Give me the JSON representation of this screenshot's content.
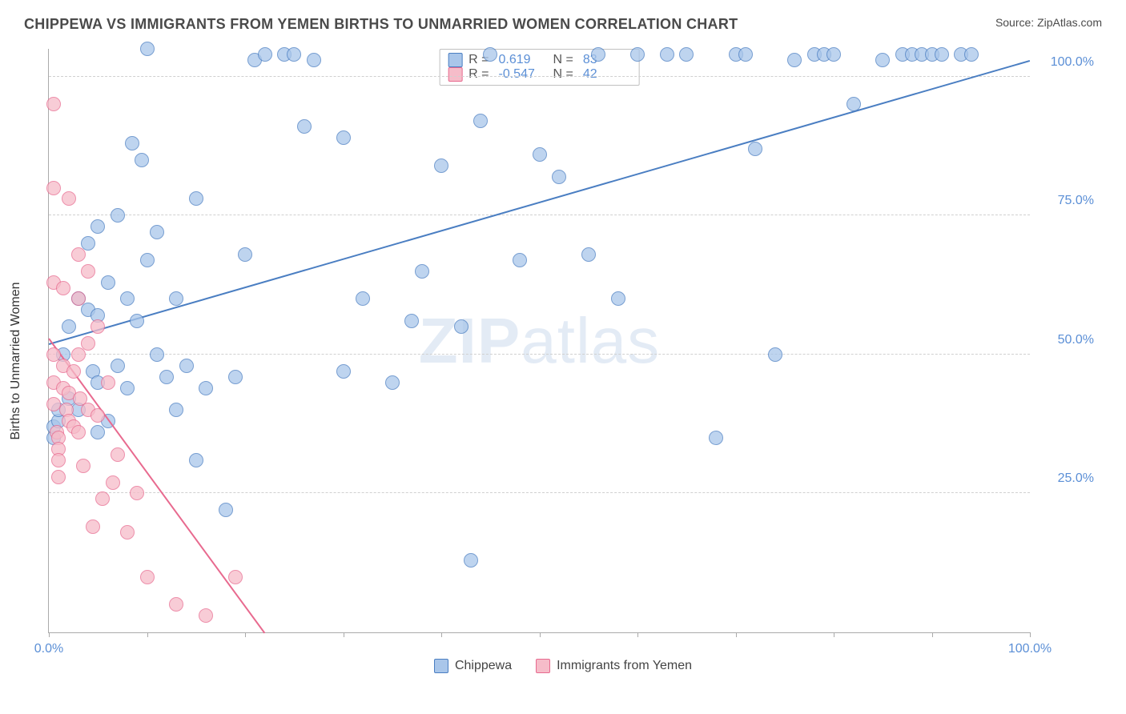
{
  "header": {
    "title": "CHIPPEWA VS IMMIGRANTS FROM YEMEN BIRTHS TO UNMARRIED WOMEN CORRELATION CHART",
    "source_prefix": "Source: ",
    "source_name": "ZipAtlas.com"
  },
  "chart": {
    "type": "scatter",
    "y_axis_label": "Births to Unmarried Women",
    "watermark_bold": "ZIP",
    "watermark_light": "atlas",
    "plot_background": "#ffffff",
    "grid_color": "#d0d0d0",
    "axis_color": "#aaaaaa",
    "tick_label_color": "#5b8fd6",
    "xlim": [
      0,
      100
    ],
    "ylim": [
      0,
      105
    ],
    "x_ticks": [
      0,
      10,
      20,
      30,
      40,
      50,
      60,
      70,
      80,
      90,
      100
    ],
    "x_tick_labels": [
      {
        "pos": 0,
        "label": "0.0%"
      },
      {
        "pos": 100,
        "label": "100.0%"
      }
    ],
    "y_gridlines": [
      25,
      50,
      75,
      100
    ],
    "y_tick_labels": [
      {
        "pos": 25,
        "label": "25.0%"
      },
      {
        "pos": 50,
        "label": "50.0%"
      },
      {
        "pos": 75,
        "label": "75.0%"
      },
      {
        "pos": 100,
        "label": "100.0%"
      }
    ],
    "marker_radius": 9,
    "marker_stroke_width": 1.5,
    "marker_fill_opacity": 0.28,
    "series": [
      {
        "name": "Chippewa",
        "color": "#4a7ec2",
        "fill": "#a9c6ea",
        "stats": {
          "R": "0.619",
          "N": "83"
        },
        "trend": {
          "x1": 0,
          "y1": 52,
          "x2": 100,
          "y2": 103,
          "width": 2
        },
        "points": [
          [
            0.5,
            35
          ],
          [
            0.5,
            37
          ],
          [
            1,
            38
          ],
          [
            1,
            40
          ],
          [
            1.5,
            50
          ],
          [
            2,
            42
          ],
          [
            2,
            55
          ],
          [
            3,
            40
          ],
          [
            3,
            60
          ],
          [
            4,
            58
          ],
          [
            4,
            70
          ],
          [
            4.5,
            47
          ],
          [
            5,
            36
          ],
          [
            5,
            45
          ],
          [
            5,
            57
          ],
          [
            5,
            73
          ],
          [
            6,
            38
          ],
          [
            6,
            63
          ],
          [
            7,
            48
          ],
          [
            7,
            75
          ],
          [
            8,
            44
          ],
          [
            8,
            60
          ],
          [
            8.5,
            88
          ],
          [
            9,
            56
          ],
          [
            9.5,
            85
          ],
          [
            10,
            67
          ],
          [
            10,
            105
          ],
          [
            11,
            50
          ],
          [
            11,
            72
          ],
          [
            12,
            46
          ],
          [
            13,
            40
          ],
          [
            13,
            60
          ],
          [
            14,
            48
          ],
          [
            15,
            31
          ],
          [
            15,
            78
          ],
          [
            16,
            44
          ],
          [
            18,
            22
          ],
          [
            19,
            46
          ],
          [
            20,
            68
          ],
          [
            21,
            103
          ],
          [
            22,
            104
          ],
          [
            24,
            104
          ],
          [
            25,
            104
          ],
          [
            26,
            91
          ],
          [
            27,
            103
          ],
          [
            30,
            89
          ],
          [
            30,
            47
          ],
          [
            32,
            60
          ],
          [
            35,
            45
          ],
          [
            37,
            56
          ],
          [
            38,
            65
          ],
          [
            40,
            84
          ],
          [
            42,
            55
          ],
          [
            43,
            13
          ],
          [
            44,
            92
          ],
          [
            45,
            104
          ],
          [
            48,
            67
          ],
          [
            50,
            86
          ],
          [
            52,
            82
          ],
          [
            55,
            68
          ],
          [
            56,
            104
          ],
          [
            58,
            60
          ],
          [
            60,
            104
          ],
          [
            63,
            104
          ],
          [
            65,
            104
          ],
          [
            68,
            35
          ],
          [
            70,
            104
          ],
          [
            71,
            104
          ],
          [
            72,
            87
          ],
          [
            74,
            50
          ],
          [
            76,
            103
          ],
          [
            78,
            104
          ],
          [
            79,
            104
          ],
          [
            80,
            104
          ],
          [
            82,
            95
          ],
          [
            85,
            103
          ],
          [
            87,
            104
          ],
          [
            88,
            104
          ],
          [
            89,
            104
          ],
          [
            90,
            104
          ],
          [
            91,
            104
          ],
          [
            93,
            104
          ],
          [
            94,
            104
          ]
        ]
      },
      {
        "name": "Immigrants from Yemen",
        "color": "#e86a8f",
        "fill": "#f6bcc9",
        "stats": {
          "R": "-0.547",
          "N": "42"
        },
        "trend": {
          "x1": 0,
          "y1": 53,
          "x2": 22,
          "y2": 0,
          "width": 2
        },
        "points": [
          [
            0.5,
            95
          ],
          [
            0.5,
            80
          ],
          [
            0.5,
            63
          ],
          [
            0.5,
            50
          ],
          [
            0.5,
            45
          ],
          [
            0.5,
            41
          ],
          [
            0.8,
            36
          ],
          [
            1,
            35
          ],
          [
            1,
            33
          ],
          [
            1,
            31
          ],
          [
            1,
            28
          ],
          [
            1.5,
            62
          ],
          [
            1.5,
            48
          ],
          [
            1.5,
            44
          ],
          [
            1.8,
            40
          ],
          [
            2,
            38
          ],
          [
            2,
            43
          ],
          [
            2,
            78
          ],
          [
            2.5,
            47
          ],
          [
            2.5,
            37
          ],
          [
            3,
            68
          ],
          [
            3,
            60
          ],
          [
            3,
            50
          ],
          [
            3,
            36
          ],
          [
            3.2,
            42
          ],
          [
            3.5,
            30
          ],
          [
            4,
            65
          ],
          [
            4,
            52
          ],
          [
            4,
            40
          ],
          [
            4.5,
            19
          ],
          [
            5,
            55
          ],
          [
            5,
            39
          ],
          [
            5.5,
            24
          ],
          [
            6,
            45
          ],
          [
            6.5,
            27
          ],
          [
            7,
            32
          ],
          [
            8,
            18
          ],
          [
            9,
            25
          ],
          [
            10,
            10
          ],
          [
            13,
            5
          ],
          [
            16,
            3
          ],
          [
            19,
            10
          ]
        ]
      }
    ],
    "stats_box": {
      "r_label": "R  =",
      "n_label": "N  ="
    },
    "bottom_legend_labels": [
      "Chippewa",
      "Immigrants from Yemen"
    ]
  }
}
